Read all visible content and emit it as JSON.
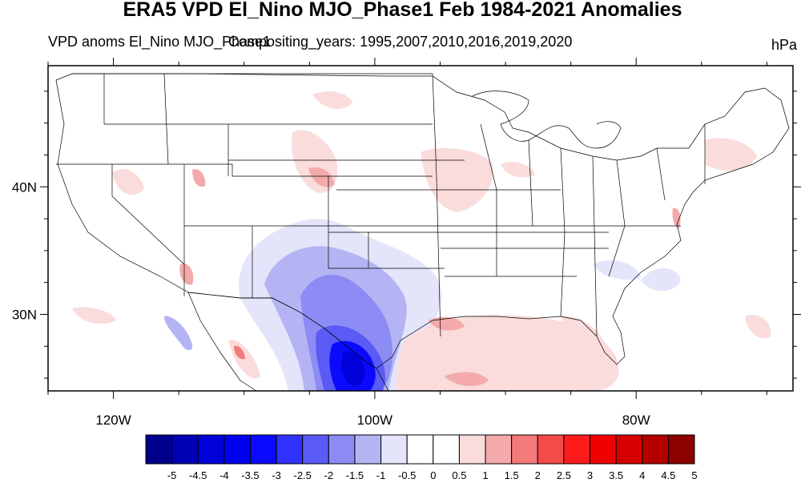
{
  "title": "ERA5 VPD El_Nino MJO_Phase1 Feb 1984-2021 Anomalies",
  "subtitle_left": "VPD anoms El_Nino MJO_Phase1",
  "subtitle_center": "Compositing_years: 1995,2007,2010,2016,2019,2020",
  "units": "hPa",
  "map": {
    "lon_range": [
      -125,
      -68
    ],
    "lat_range": [
      24,
      49.5
    ],
    "lon_ticks": [
      {
        "value": -120,
        "label": "120W"
      },
      {
        "value": -100,
        "label": "100W"
      },
      {
        "value": -80,
        "label": "80W"
      }
    ],
    "lat_ticks": [
      {
        "value": 40,
        "label": "40N"
      },
      {
        "value": 30,
        "label": "30N"
      }
    ]
  },
  "colorbar": {
    "labels": [
      "-5",
      "-4.5",
      "-4",
      "-3.5",
      "-3",
      "-2.5",
      "-2",
      "-1.5",
      "-1",
      "-0.5",
      "0",
      "0.5",
      "1",
      "1.5",
      "2",
      "2.5",
      "3",
      "3.5",
      "4",
      "4.5",
      "5"
    ],
    "colors": [
      "#00008c",
      "#0000b4",
      "#0000d8",
      "#0000f0",
      "#0a0aff",
      "#3232ff",
      "#5a5af4",
      "#8c8cf4",
      "#b4b4f4",
      "#e4e4fa",
      "#ffffff",
      "#ffffff",
      "#fadcdc",
      "#f4aaaa",
      "#f47a7a",
      "#f44a4a",
      "#ff1c1c",
      "#f00000",
      "#d60000",
      "#b40000",
      "#8c0000"
    ]
  }
}
